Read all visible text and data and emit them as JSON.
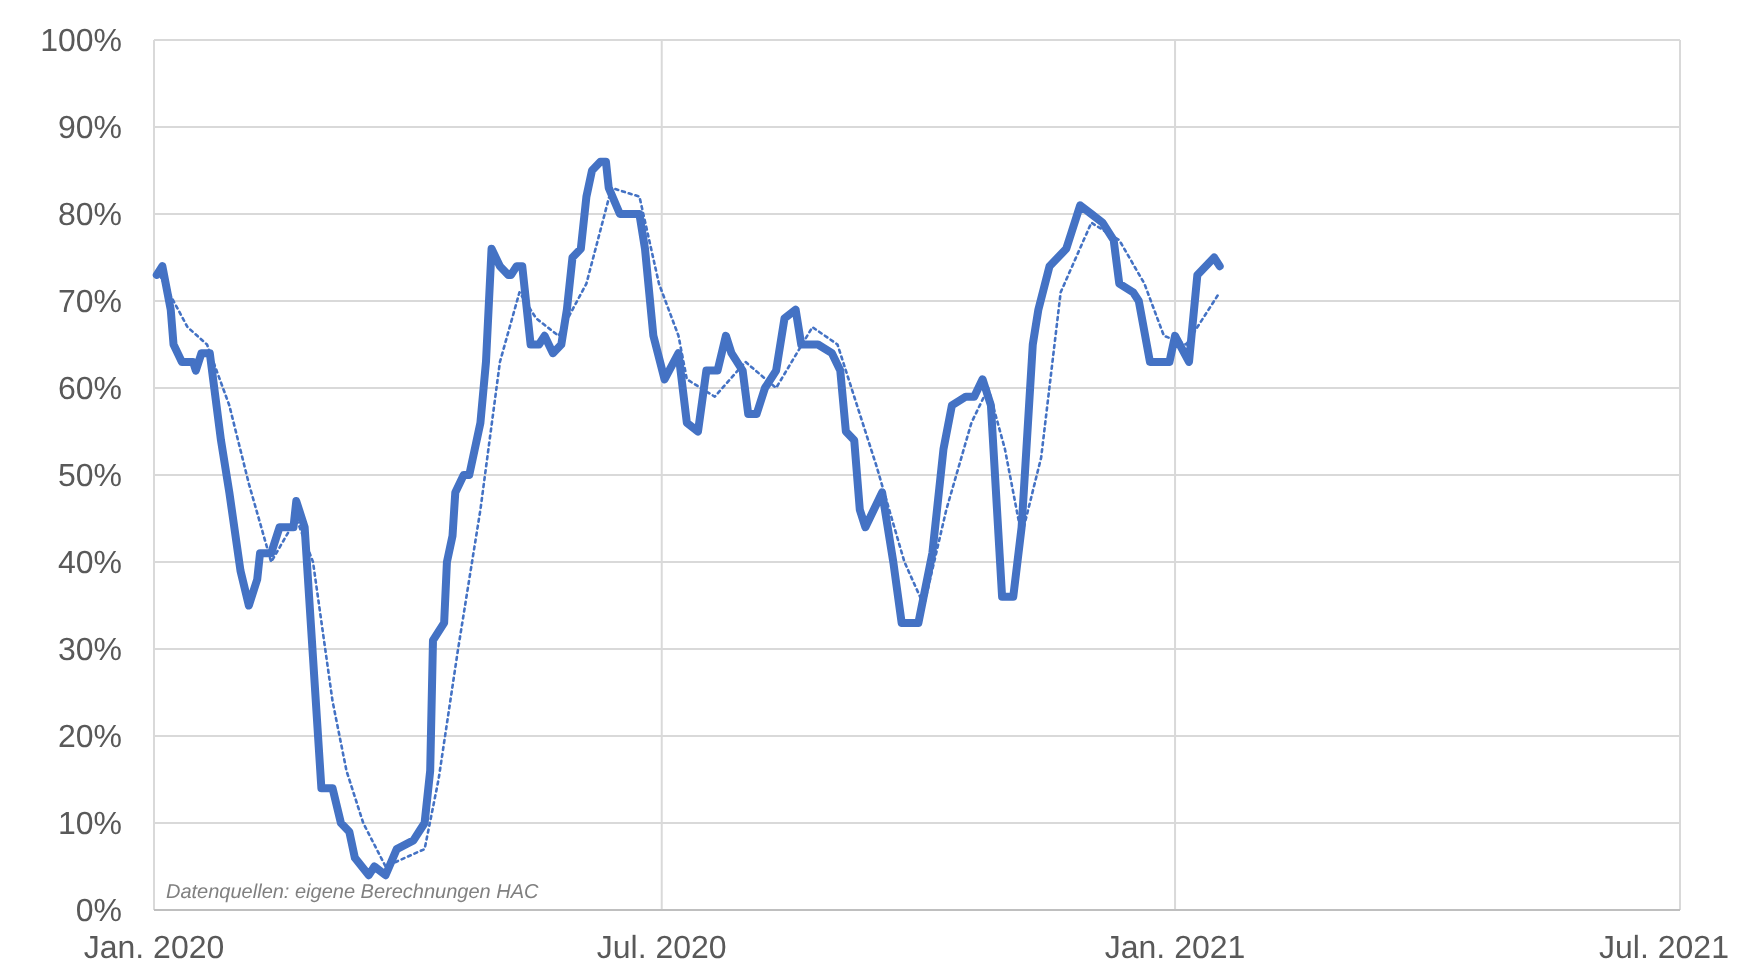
{
  "chart_data": {
    "type": "line",
    "xlim": [
      "2020-01-01",
      "2021-07-01"
    ],
    "xticks": [
      {
        "value": "2020-01-01",
        "label": "Jan. 2020"
      },
      {
        "value": "2020-07-01",
        "label": "Jul. 2020"
      },
      {
        "value": "2021-01-01",
        "label": "Jan. 2021"
      },
      {
        "value": "2021-07-01",
        "label": "Jul. 2021"
      }
    ],
    "ylim": [
      0,
      100
    ],
    "yticks": [
      {
        "value": 0,
        "label": "0%"
      },
      {
        "value": 10,
        "label": "10%"
      },
      {
        "value": 20,
        "label": "20%"
      },
      {
        "value": 30,
        "label": "30%"
      },
      {
        "value": 40,
        "label": "40%"
      },
      {
        "value": 50,
        "label": "50%"
      },
      {
        "value": 60,
        "label": "60%"
      },
      {
        "value": 70,
        "label": "70%"
      },
      {
        "value": 80,
        "label": "80%"
      },
      {
        "value": 90,
        "label": "90%"
      },
      {
        "value": 100,
        "label": "100%"
      }
    ],
    "grid": true,
    "marker": "none",
    "annotations": [
      "Datenquellen: eigene Berechnungen HAC"
    ],
    "series": [
      {
        "color": "#4472c4",
        "line_style": "solid",
        "x": [
          "2020-01-02",
          "2020-01-04",
          "2020-01-07",
          "2020-01-08",
          "2020-01-11",
          "2020-01-15",
          "2020-01-16",
          "2020-01-18",
          "2020-01-21",
          "2020-01-25",
          "2020-01-28",
          "2020-02-01",
          "2020-02-04",
          "2020-02-07",
          "2020-02-08",
          "2020-02-12",
          "2020-02-15",
          "2020-02-20",
          "2020-02-21",
          "2020-02-24",
          "2020-02-27",
          "2020-03-01",
          "2020-03-04",
          "2020-03-05",
          "2020-03-08",
          "2020-03-11",
          "2020-03-13",
          "2020-03-18",
          "2020-03-20",
          "2020-03-24",
          "2020-03-28",
          "2020-04-03",
          "2020-04-07",
          "2020-04-09",
          "2020-04-10",
          "2020-04-14",
          "2020-04-15",
          "2020-04-17",
          "2020-04-18",
          "2020-04-21",
          "2020-04-23",
          "2020-04-27",
          "2020-04-29",
          "2020-05-01",
          "2020-05-04",
          "2020-05-07",
          "2020-05-08",
          "2020-05-10",
          "2020-05-12",
          "2020-05-15",
          "2020-05-18",
          "2020-05-20",
          "2020-05-23",
          "2020-05-26",
          "2020-05-28",
          "2020-05-30",
          "2020-06-02",
          "2020-06-04",
          "2020-06-06",
          "2020-06-09",
          "2020-06-11",
          "2020-06-12",
          "2020-06-16",
          "2020-06-19",
          "2020-06-23",
          "2020-06-25",
          "2020-06-28",
          "2020-07-02",
          "2020-07-07",
          "2020-07-10",
          "2020-07-14",
          "2020-07-17",
          "2020-07-21",
          "2020-07-24",
          "2020-07-26",
          "2020-07-30",
          "2020-08-01",
          "2020-08-04",
          "2020-08-07",
          "2020-08-11",
          "2020-08-14",
          "2020-08-18",
          "2020-08-20",
          "2020-08-26",
          "2020-08-31",
          "2020-09-03",
          "2020-09-05",
          "2020-09-08",
          "2020-09-10",
          "2020-09-12",
          "2020-09-18",
          "2020-09-22",
          "2020-09-25",
          "2020-09-29",
          "2020-10-01",
          "2020-10-06",
          "2020-10-10",
          "2020-10-13",
          "2020-10-18",
          "2020-10-21",
          "2020-10-24",
          "2020-10-27",
          "2020-10-31",
          "2020-11-04",
          "2020-11-07",
          "2020-11-11",
          "2020-11-13",
          "2020-11-17",
          "2020-11-23",
          "2020-11-25",
          "2020-11-28",
          "2020-12-02",
          "2020-12-06",
          "2020-12-10",
          "2020-12-12",
          "2020-12-17",
          "2020-12-19",
          "2020-12-23",
          "2020-12-30",
          "2021-01-01",
          "2021-01-06",
          "2021-01-09",
          "2021-01-12",
          "2021-01-15",
          "2021-01-17"
        ],
        "values": [
          73,
          74,
          69,
          65,
          63,
          63,
          62,
          64,
          64,
          54,
          48,
          39,
          35,
          38,
          41,
          41,
          44,
          44,
          47,
          44,
          29,
          14,
          14,
          14,
          10,
          9,
          6,
          4,
          5,
          4,
          7,
          8,
          10,
          16,
          31,
          33,
          40,
          43,
          48,
          50,
          50,
          56,
          63,
          76,
          74,
          73,
          73,
          74,
          74,
          65,
          65,
          66,
          64,
          65,
          69,
          75,
          76,
          82,
          85,
          86,
          86,
          83,
          80,
          80,
          80,
          76,
          66,
          61,
          64,
          56,
          55,
          62,
          62,
          66,
          64,
          62,
          57,
          57,
          60,
          62,
          68,
          69,
          65,
          65,
          64,
          62,
          55,
          54,
          46,
          44,
          48,
          40,
          33,
          33,
          33,
          41,
          53,
          58,
          59,
          59,
          61,
          58,
          36,
          36,
          44,
          65,
          69,
          74,
          76,
          78,
          81,
          80,
          79,
          77,
          72,
          71,
          70,
          63,
          63,
          66,
          63,
          73,
          74,
          75,
          74
        ]
      },
      {
        "color": "#4472c4",
        "line_style": "dotted",
        "x": [
          "2020-01-03",
          "2020-01-13",
          "2020-01-20",
          "2020-01-28",
          "2020-02-04",
          "2020-02-12",
          "2020-02-21",
          "2020-02-27",
          "2020-03-05",
          "2020-03-10",
          "2020-03-16",
          "2020-03-24",
          "2020-04-07",
          "2020-04-12",
          "2020-04-19",
          "2020-04-27",
          "2020-05-04",
          "2020-05-11",
          "2020-05-17",
          "2020-05-25",
          "2020-06-04",
          "2020-06-13",
          "2020-06-23",
          "2020-06-30",
          "2020-07-07",
          "2020-07-10",
          "2020-07-20",
          "2020-07-31",
          "2020-08-11",
          "2020-08-24",
          "2020-09-02",
          "2020-09-09",
          "2020-09-16",
          "2020-09-26",
          "2020-10-03",
          "2020-10-11",
          "2020-10-20",
          "2020-10-26",
          "2020-11-01",
          "2020-11-07",
          "2020-11-14",
          "2020-11-21",
          "2020-12-02",
          "2020-12-12",
          "2020-12-21",
          "2020-12-28",
          "2021-01-05",
          "2021-01-17"
        ],
        "values": [
          73,
          67,
          65,
          58,
          49,
          40,
          45,
          40,
          24,
          16,
          10,
          5,
          7,
          15,
          30,
          46,
          63,
          71,
          68,
          66,
          72,
          83,
          82,
          72,
          66,
          61,
          59,
          63,
          60,
          67,
          65,
          58,
          51,
          40,
          35,
          46,
          56,
          60,
          53,
          43,
          52,
          71,
          79,
          77,
          72,
          66,
          65,
          71
        ]
      }
    ]
  }
}
